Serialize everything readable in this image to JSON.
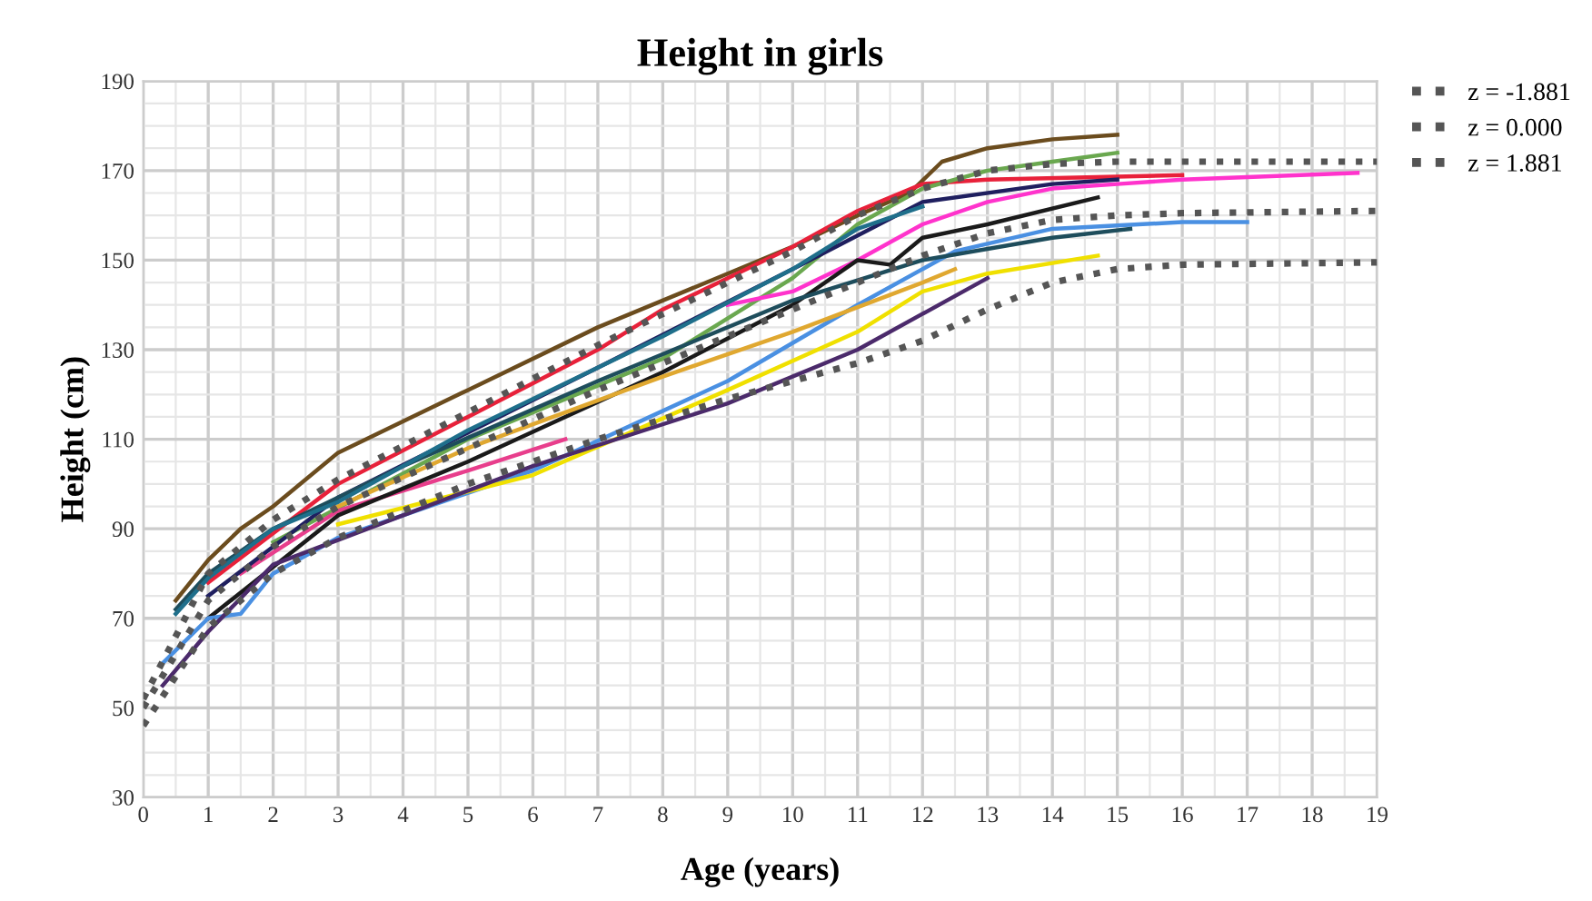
{
  "chart_data": {
    "type": "line",
    "title": "Height in girls",
    "xlabel": "Age (years)",
    "ylabel": "Height (cm)",
    "xlim": [
      0,
      19
    ],
    "xticks": [
      0,
      1,
      2,
      3,
      4,
      5,
      6,
      7,
      8,
      9,
      10,
      11,
      12,
      13,
      14,
      15,
      16,
      17,
      18,
      19
    ],
    "ylim": [
      30,
      190
    ],
    "yticks": [
      30,
      50,
      70,
      90,
      110,
      130,
      150,
      170,
      190
    ],
    "grid": true,
    "legend": "top right",
    "series": [
      {
        "color": "#6b4c1e",
        "x": [
          0.5,
          1,
          1.5,
          2,
          3,
          5,
          7,
          9,
          10,
          11,
          11.8,
          12.3,
          13,
          14,
          15
        ],
        "values": [
          74,
          83,
          90,
          95,
          107,
          121,
          135,
          147,
          153,
          160,
          165,
          172,
          175,
          177,
          178
        ]
      },
      {
        "color": "#e8213a",
        "x": [
          1,
          3,
          5,
          7,
          8,
          9,
          10,
          11,
          12,
          13,
          16
        ],
        "values": [
          78,
          100,
          115,
          130,
          139,
          146,
          153,
          161,
          167,
          168,
          169
        ]
      },
      {
        "color": "#6aa84f",
        "x": [
          2,
          5,
          8,
          10,
          11,
          12,
          13,
          14,
          15
        ],
        "values": [
          87,
          110,
          128,
          146,
          158,
          166,
          170,
          172,
          174
        ]
      },
      {
        "color": "#ff33cc",
        "x": [
          9,
          10,
          11,
          12,
          13,
          14,
          15,
          16,
          18.7
        ],
        "values": [
          140,
          143,
          150,
          158,
          163,
          166,
          167,
          168,
          169.5
        ]
      },
      {
        "color": "#e83e8c",
        "x": [
          1.5,
          3,
          5,
          6.5
        ],
        "values": [
          80,
          94,
          103,
          110
        ]
      },
      {
        "color": "#1f1f5f",
        "x": [
          1,
          3,
          7,
          10,
          12,
          14,
          15
        ],
        "values": [
          75,
          97,
          126,
          148,
          163,
          167,
          168
        ]
      },
      {
        "color": "#1a1a1a",
        "x": [
          1,
          3,
          5,
          8,
          10,
          11,
          11.5,
          12,
          13,
          14.7
        ],
        "values": [
          70,
          93,
          105,
          125,
          140,
          150,
          149,
          155,
          158,
          164
        ]
      },
      {
        "color": "#4a90e2",
        "x": [
          0.3,
          1,
          1.5,
          2,
          3,
          6,
          9,
          11,
          12.5,
          14,
          16,
          17
        ],
        "values": [
          60,
          70,
          71,
          80,
          88,
          103,
          123,
          140,
          152,
          157,
          158.5,
          158.5
        ]
      },
      {
        "color": "#1e4d5c",
        "x": [
          0.5,
          1,
          2,
          4,
          7,
          10,
          12,
          14,
          15.2
        ],
        "values": [
          72,
          80,
          90,
          104,
          123,
          141,
          150,
          155,
          157
        ]
      },
      {
        "color": "#f0e000",
        "x": [
          3,
          6,
          9,
          11,
          12,
          13,
          14.7
        ],
        "values": [
          91,
          102,
          121,
          134,
          143,
          147,
          151
        ]
      },
      {
        "color": "#4b2a6b",
        "x": [
          0.3,
          1,
          2,
          4,
          6,
          9,
          11,
          13
        ],
        "values": [
          55,
          67,
          82,
          93,
          104,
          118,
          130,
          146
        ]
      },
      {
        "color": "#e0a830",
        "x": [
          3,
          5,
          8,
          10,
          12,
          12.5
        ],
        "values": [
          95,
          108,
          124,
          134,
          145,
          148
        ]
      },
      {
        "color": "#1f6f8b",
        "x": [
          0.5,
          1,
          2,
          3,
          5,
          8,
          10,
          11,
          12
        ],
        "values": [
          71,
          79,
          90,
          96,
          112,
          133,
          148,
          157,
          162
        ]
      },
      {
        "name": "z = -1.881",
        "color": "#555555",
        "line_style": "dotted",
        "x": [
          0,
          1,
          2,
          3,
          5,
          7,
          9,
          10,
          11,
          12,
          13,
          14,
          15,
          16,
          19
        ],
        "values": [
          46,
          68,
          80,
          88,
          100,
          110,
          119,
          123,
          127,
          132,
          139,
          145,
          148,
          149,
          149.5
        ]
      },
      {
        "name": "z = 0.000",
        "color": "#555555",
        "line_style": "dotted",
        "x": [
          0,
          1,
          2,
          3,
          5,
          7,
          9,
          10,
          11,
          12,
          13,
          14,
          15,
          16,
          19
        ],
        "values": [
          50,
          74,
          86,
          95,
          108,
          121,
          133,
          139,
          145,
          151,
          156,
          159,
          160,
          160.5,
          161
        ]
      },
      {
        "name": "z = 1.881",
        "color": "#555555",
        "line_style": "dotted",
        "x": [
          0,
          1,
          2,
          3,
          5,
          7,
          9,
          10,
          11,
          12,
          13,
          14,
          15,
          19
        ],
        "values": [
          52,
          80,
          92,
          101,
          116,
          131,
          145,
          152,
          160,
          166,
          170,
          171.5,
          172,
          172
        ]
      }
    ]
  }
}
